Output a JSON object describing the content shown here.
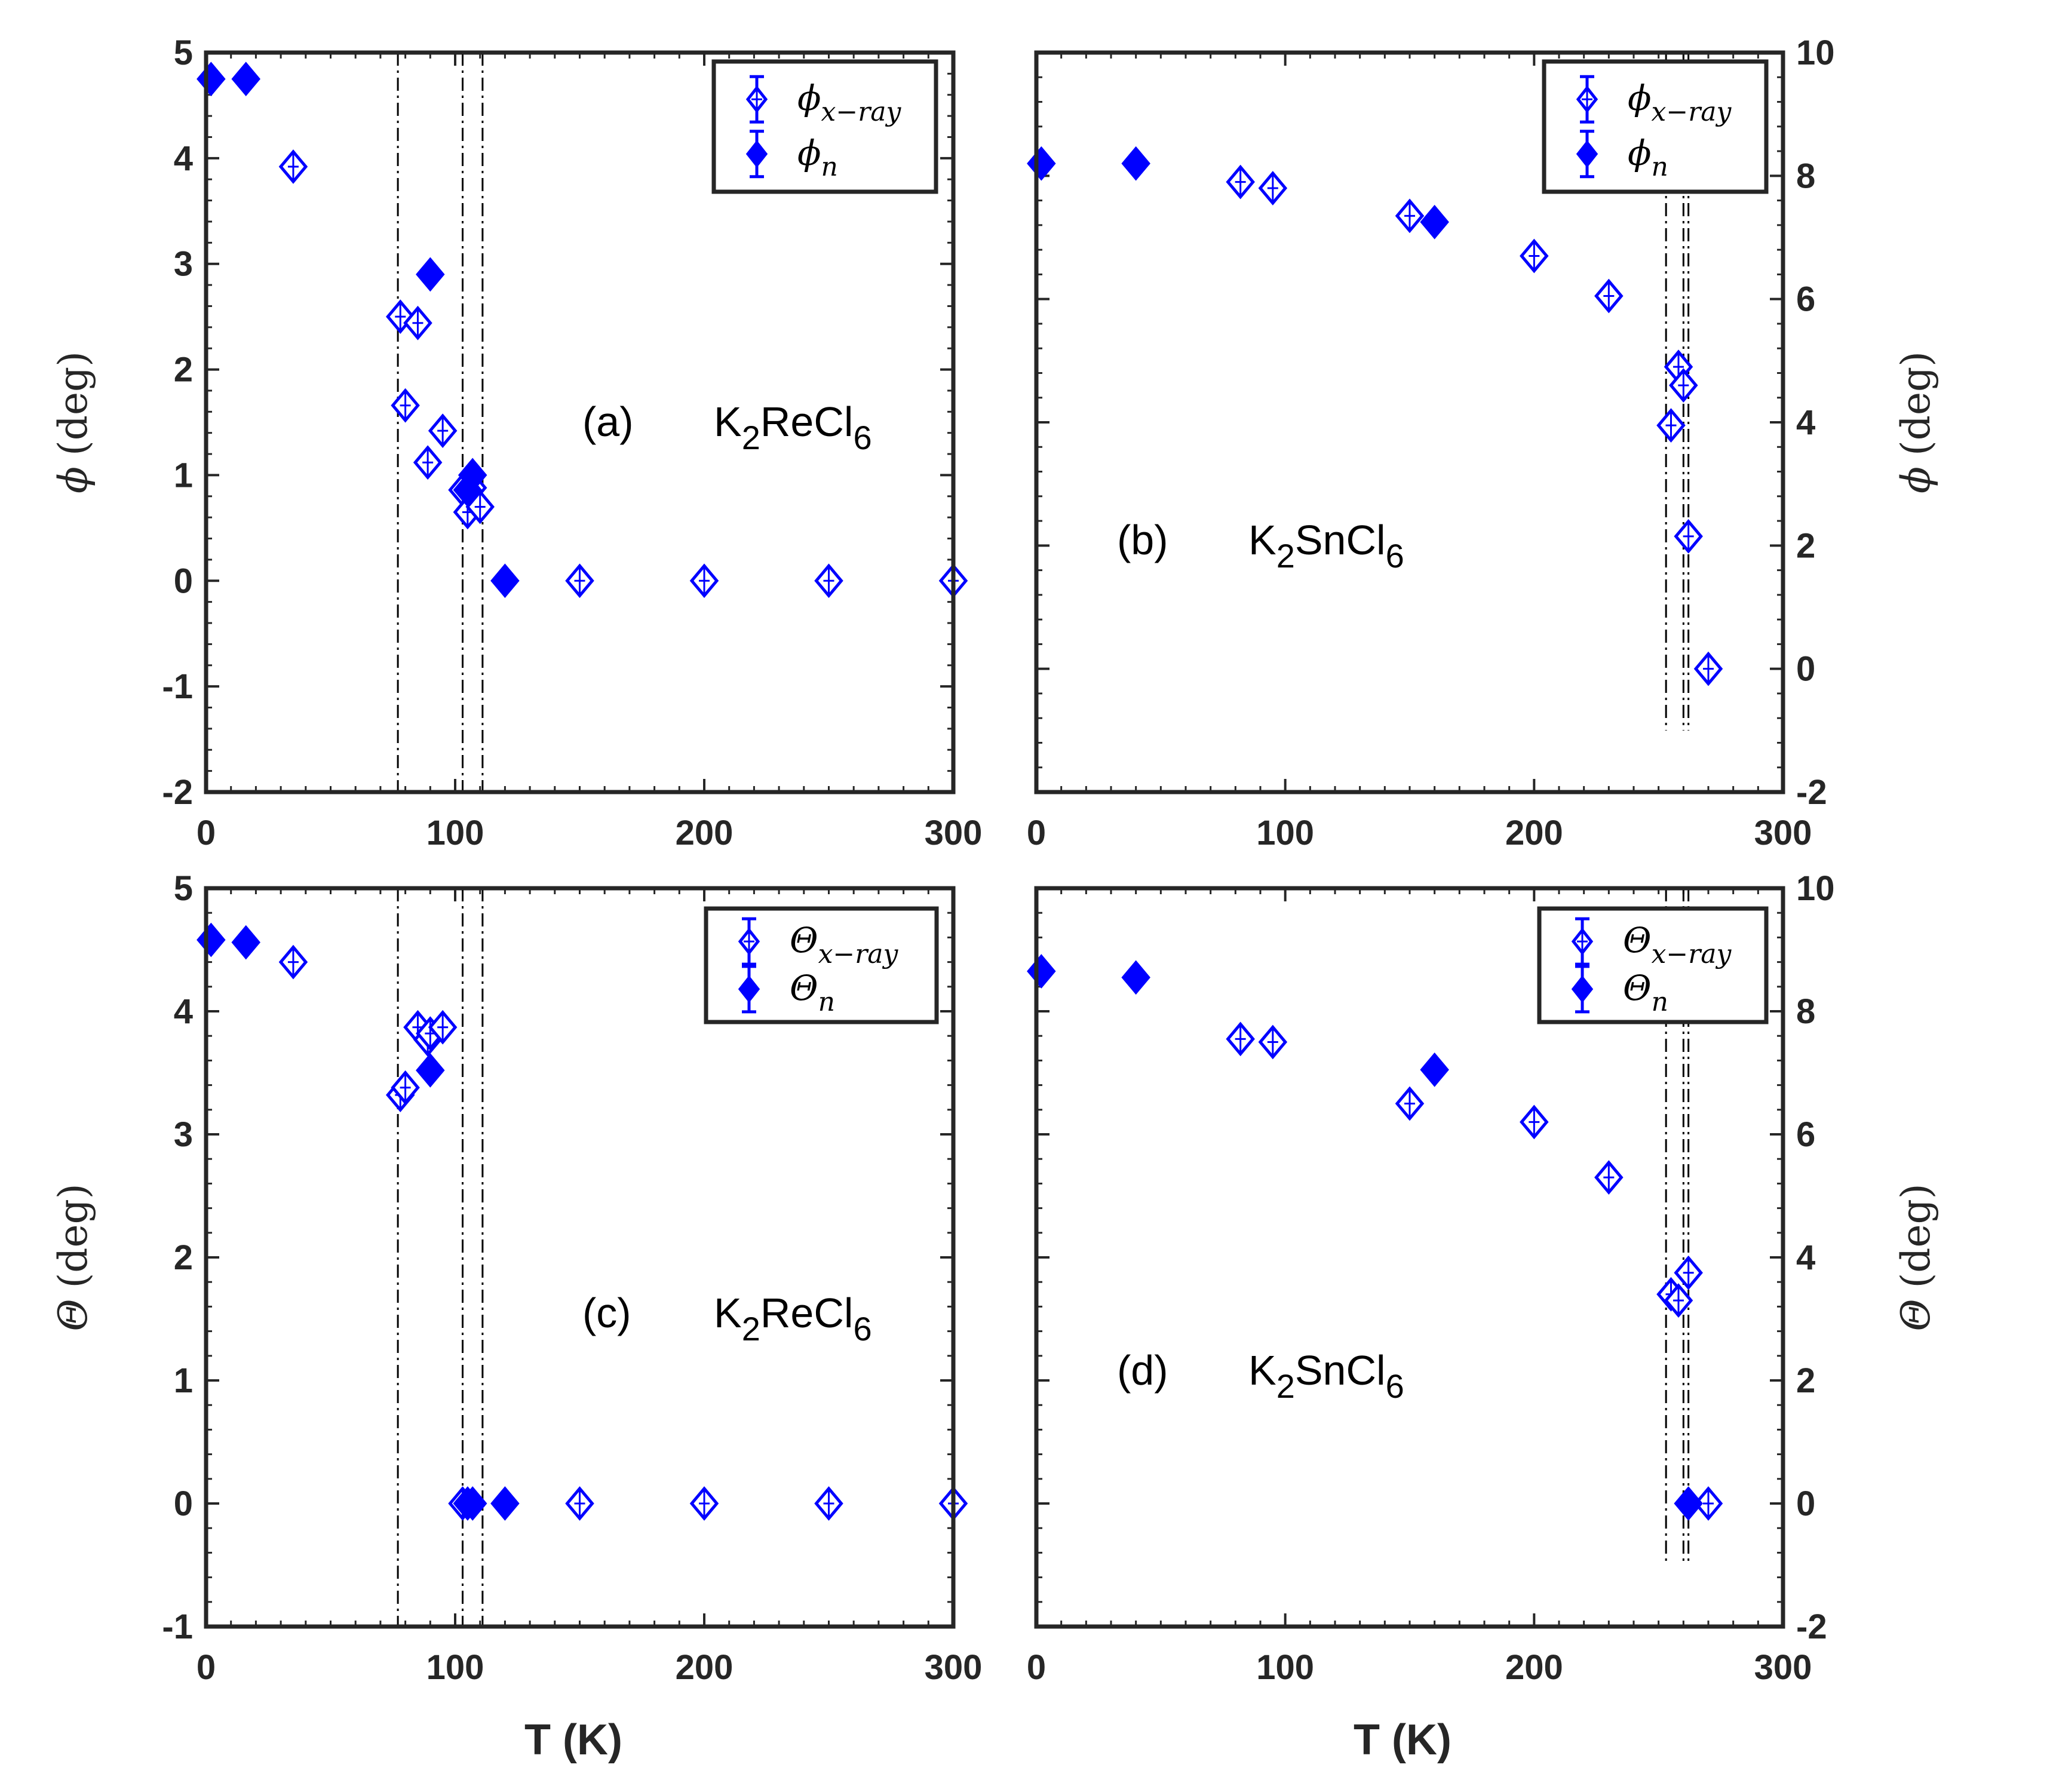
{
  "figure": {
    "shared_xlabel": "T (K)",
    "marker_color": "#0000ff",
    "line_color": "#000000"
  },
  "chart_data": [
    {
      "panel": "a",
      "type": "scatter",
      "label": "(a)",
      "compound": {
        "main": "K",
        "sub1": "2",
        "mid": "ReCl",
        "sub2": "6"
      },
      "ylabel_symbol": "ϕ",
      "ylabel_unit": "(deg)",
      "xlabel": "",
      "xlim": [
        0,
        300
      ],
      "ylim": [
        -2,
        5
      ],
      "xticks": [
        0,
        100,
        200,
        300
      ],
      "yticks": [
        -2,
        -1,
        0,
        1,
        2,
        3,
        4,
        5
      ],
      "ytick_side": "left",
      "legend_position": "top-right",
      "vlines": [
        77,
        103,
        111
      ],
      "series": [
        {
          "name": "ϕ_{x−ray}",
          "legend_main": "ϕ",
          "legend_sub": "x−ray",
          "filled": false,
          "x": [
            35,
            78,
            80,
            85,
            89,
            95,
            103,
            105,
            107,
            110,
            150,
            200,
            250,
            300
          ],
          "y": [
            3.92,
            2.5,
            1.66,
            2.44,
            1.12,
            1.42,
            0.86,
            0.65,
            0.88,
            0.7,
            0.0,
            0.0,
            0.0,
            0.0
          ]
        },
        {
          "name": "ϕ_n",
          "legend_main": "ϕ",
          "legend_sub": "n",
          "filled": true,
          "x": [
            2,
            16,
            90,
            105,
            107,
            120
          ],
          "y": [
            4.75,
            4.75,
            2.9,
            0.86,
            1.0,
            0.0
          ]
        }
      ]
    },
    {
      "panel": "b",
      "type": "scatter",
      "label": "(b)",
      "compound": {
        "main": "K",
        "sub1": "2",
        "mid": "SnCl",
        "sub2": "6"
      },
      "ylabel_symbol": "ϕ",
      "ylabel_unit": "(deg)",
      "xlabel": "",
      "xlim": [
        0,
        300
      ],
      "ylim": [
        -2,
        10
      ],
      "xticks": [
        0,
        100,
        200,
        300
      ],
      "yticks": [
        -2,
        0,
        2,
        4,
        6,
        8,
        10
      ],
      "ytick_side": "right",
      "legend_position": "top-right",
      "vlines": [
        253,
        260,
        262
      ],
      "vline_ymin": -1,
      "series": [
        {
          "name": "ϕ_{x−ray}",
          "legend_main": "ϕ",
          "legend_sub": "x−ray",
          "filled": false,
          "x": [
            82,
            95,
            150,
            200,
            230,
            255,
            258,
            260,
            262,
            270
          ],
          "y": [
            7.9,
            7.8,
            7.35,
            6.7,
            6.05,
            3.95,
            4.9,
            4.6,
            2.15,
            0.0
          ]
        },
        {
          "name": "ϕ_n",
          "legend_main": "ϕ",
          "legend_sub": "n",
          "filled": true,
          "x": [
            2,
            40,
            160
          ],
          "y": [
            8.2,
            8.2,
            7.25
          ]
        }
      ]
    },
    {
      "panel": "c",
      "type": "scatter",
      "label": "(c)",
      "compound": {
        "main": "K",
        "sub1": "2",
        "mid": "ReCl",
        "sub2": "6"
      },
      "ylabel_symbol": "Θ",
      "ylabel_unit": "(deg)",
      "xlabel": "T (K)",
      "xlim": [
        0,
        300
      ],
      "ylim": [
        -1,
        5
      ],
      "xticks": [
        0,
        100,
        200,
        300
      ],
      "yticks": [
        -1,
        0,
        1,
        2,
        3,
        4,
        5
      ],
      "ytick_side": "left",
      "legend_position": "top-right",
      "vlines": [
        77,
        103,
        111
      ],
      "series": [
        {
          "name": "Θ_{x−ray}",
          "legend_main": "Θ",
          "legend_sub": "x−ray",
          "filled": false,
          "x": [
            35,
            78,
            80,
            85,
            89,
            90,
            95,
            103,
            150,
            200,
            250,
            300
          ],
          "y": [
            4.4,
            3.32,
            3.38,
            3.87,
            3.77,
            3.82,
            3.87,
            0.0,
            0.0,
            0.0,
            0.0,
            0.0
          ]
        },
        {
          "name": "Θ_n",
          "legend_main": "Θ",
          "legend_sub": "n",
          "filled": true,
          "x": [
            2,
            16,
            90,
            105,
            107,
            120
          ],
          "y": [
            4.58,
            4.56,
            3.52,
            0.0,
            0.0,
            0.0
          ]
        }
      ]
    },
    {
      "panel": "d",
      "type": "scatter",
      "label": "(d)",
      "compound": {
        "main": "K",
        "sub1": "2",
        "mid": "SnCl",
        "sub2": "6"
      },
      "ylabel_symbol": "Θ",
      "ylabel_unit": "(deg)",
      "xlabel": "T (K)",
      "xlim": [
        0,
        300
      ],
      "ylim": [
        -2,
        10
      ],
      "xticks": [
        0,
        100,
        200,
        300
      ],
      "yticks": [
        -2,
        0,
        2,
        4,
        6,
        8,
        10
      ],
      "ytick_side": "right",
      "legend_position": "top-right",
      "vlines": [
        253,
        260,
        262
      ],
      "vline_ymin": -1,
      "series": [
        {
          "name": "Θ_{x−ray}",
          "legend_main": "Θ",
          "legend_sub": "x−ray",
          "filled": false,
          "x": [
            82,
            95,
            150,
            200,
            230,
            255,
            258,
            262,
            270
          ],
          "y": [
            7.55,
            7.5,
            6.5,
            6.2,
            5.3,
            3.4,
            3.3,
            3.75,
            0.0
          ]
        },
        {
          "name": "Θ_n",
          "legend_main": "Θ",
          "legend_sub": "n",
          "filled": true,
          "x": [
            2,
            40,
            160,
            262
          ],
          "y": [
            8.65,
            8.55,
            7.05,
            0.0
          ]
        }
      ]
    }
  ]
}
